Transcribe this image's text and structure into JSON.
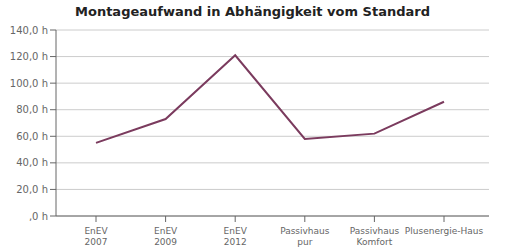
{
  "chart_data": {
    "type": "line",
    "title": "Montageaufwand in Abhängigkeit vom Standard",
    "categories": [
      "EnEV 2007",
      "EnEV 2009",
      "EnEV 2012",
      "Passivhaus pur",
      "Passivhaus Komfort",
      "Plusenergie-Haus"
    ],
    "values": [
      55,
      73,
      121,
      58,
      62,
      86
    ],
    "color": "#7B3B5E",
    "ylim": [
      0,
      140
    ],
    "yticks": [
      {
        "value": 0,
        "label": ",0 h"
      },
      {
        "value": 20,
        "label": "20,0 h"
      },
      {
        "value": 40,
        "label": "40,0 h"
      },
      {
        "value": 60,
        "label": "60,0 h"
      },
      {
        "value": 80,
        "label": "80,0 h"
      },
      {
        "value": 100,
        "label": "100,0 h"
      },
      {
        "value": 120,
        "label": "120,0 h"
      },
      {
        "value": 140,
        "label": "140,0 h"
      }
    ],
    "grid": true
  }
}
